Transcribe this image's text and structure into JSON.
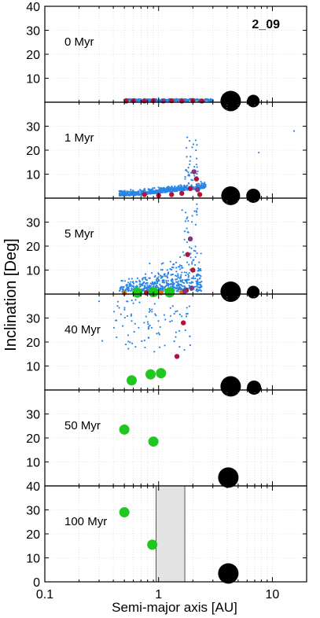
{
  "figure_label": "2_09",
  "ylabel": "Inclination [Deg]",
  "xlabel": "Semi-major axis [AU]",
  "colors": {
    "planetesimal": "#2a86e6",
    "embryo_dark": "#b3123a",
    "embryo_purple": "#7b3a7d",
    "planet_green": "#1ec81e",
    "embryo_orange": "#d9760e",
    "giant": "#000000",
    "band_fill": "#e3e3e3"
  },
  "chart_data": {
    "type": "scatter",
    "xscale": "log",
    "xlim": [
      0.1,
      20
    ],
    "ylim": [
      0,
      40
    ],
    "x_ticks": [
      {
        "v": 0.1,
        "label": "0.1"
      },
      {
        "v": 1,
        "label": "1"
      },
      {
        "v": 10,
        "label": "10"
      }
    ],
    "y_ticks": [
      0,
      10,
      20,
      30,
      40
    ],
    "grid": true,
    "panels": [
      {
        "time_label": "0 Myr",
        "y_tick_labels": [
          "10",
          "20",
          "30",
          "40"
        ],
        "planetesimal_band": {
          "x_min": 0.5,
          "x_max": 3.0,
          "y": 0.5
        },
        "embryos": [
          {
            "x": 0.52,
            "y": 0.5,
            "c": "embryo_dark"
          },
          {
            "x": 0.6,
            "y": 0.6,
            "c": "embryo_dark"
          },
          {
            "x": 0.75,
            "y": 0.5,
            "c": "embryo_dark"
          },
          {
            "x": 0.9,
            "y": 0.7,
            "c": "embryo_dark"
          },
          {
            "x": 1.1,
            "y": 0.5,
            "c": "embryo_purple"
          },
          {
            "x": 1.3,
            "y": 0.6,
            "c": "embryo_dark"
          },
          {
            "x": 1.6,
            "y": 0.5,
            "c": "embryo_dark"
          },
          {
            "x": 2.0,
            "y": 0.7,
            "c": "embryo_dark"
          },
          {
            "x": 2.4,
            "y": 0.5,
            "c": "embryo_dark"
          }
        ],
        "giants": [
          {
            "x": 4.3,
            "y": 0.5,
            "r": 13
          },
          {
            "x": 6.8,
            "y": 0.5,
            "r": 8
          }
        ]
      },
      {
        "time_label": "1 Myr",
        "y_tick_labels": [
          "10",
          "20",
          "30"
        ],
        "planetesimal_cloud": "stirred",
        "outliers": [
          {
            "x": 15.5,
            "y": 28
          },
          {
            "x": 7.6,
            "y": 19
          }
        ],
        "embryos": [
          {
            "x": 1.9,
            "y": 4,
            "c": "embryo_dark"
          },
          {
            "x": 1.6,
            "y": 2,
            "c": "embryo_dark"
          },
          {
            "x": 1.3,
            "y": 1.5,
            "c": "embryo_dark"
          },
          {
            "x": 2.2,
            "y": 3.5,
            "c": "embryo_purple"
          },
          {
            "x": 2.3,
            "y": 1.5,
            "c": "embryo_dark"
          },
          {
            "x": 1.0,
            "y": 1.2,
            "c": "embryo_dark"
          },
          {
            "x": 0.75,
            "y": 1.5,
            "c": "embryo_dark"
          },
          {
            "x": 2.05,
            "y": 11,
            "c": "embryo_purple"
          },
          {
            "x": 2.15,
            "y": 8,
            "c": "embryo_dark"
          }
        ],
        "giants": [
          {
            "x": 4.3,
            "y": 1.0,
            "r": 12
          },
          {
            "x": 6.8,
            "y": 1.0,
            "r": 9
          }
        ]
      },
      {
        "time_label": "5 Myr",
        "y_tick_labels": [
          "10",
          "20",
          "30"
        ],
        "planetesimal_cloud": "excited",
        "embryos": [
          {
            "x": 0.5,
            "y": 0.5,
            "c": "embryo_orange"
          },
          {
            "x": 0.78,
            "y": 0.5,
            "c": "embryo_dark"
          },
          {
            "x": 1.05,
            "y": 0.5,
            "c": "embryo_orange"
          },
          {
            "x": 1.8,
            "y": 16.5,
            "c": "embryo_dark"
          },
          {
            "x": 1.9,
            "y": 23,
            "c": "embryo_purple"
          },
          {
            "x": 2.0,
            "y": 10,
            "c": "embryo_dark"
          },
          {
            "x": 1.95,
            "y": 2.5,
            "c": "embryo_purple"
          },
          {
            "x": 1.75,
            "y": 1.5,
            "c": "embryo_dark"
          },
          {
            "x": 1.6,
            "y": 0.8,
            "c": "embryo_orange"
          },
          {
            "x": 1.7,
            "y": 1.2,
            "c": "embryo_purple"
          }
        ],
        "planets": [
          {
            "x": 0.65,
            "y": 0.6
          },
          {
            "x": 0.9,
            "y": 0.8
          },
          {
            "x": 1.25,
            "y": 0.7
          }
        ],
        "giants": [
          {
            "x": 4.3,
            "y": 1.0,
            "r": 13
          },
          {
            "x": 6.8,
            "y": 0.8,
            "r": 8
          }
        ]
      },
      {
        "time_label": "40 Myr",
        "y_tick_labels": [
          "10",
          "20",
          "30"
        ],
        "planetesimal_cloud": "sparse",
        "embryos": [
          {
            "x": 1.65,
            "y": 28,
            "c": "embryo_dark"
          },
          {
            "x": 1.45,
            "y": 14,
            "c": "embryo_dark"
          }
        ],
        "planets": [
          {
            "x": 0.58,
            "y": 4
          },
          {
            "x": 0.85,
            "y": 6.5
          },
          {
            "x": 1.05,
            "y": 7
          }
        ],
        "giants": [
          {
            "x": 4.3,
            "y": 1.5,
            "r": 13
          },
          {
            "x": 6.9,
            "y": 1.0,
            "r": 9
          }
        ]
      },
      {
        "time_label": "50 Myr",
        "y_tick_labels": [
          "10",
          "20",
          "30"
        ],
        "outliers": [
          {
            "x": 0.8,
            "y": 39
          }
        ],
        "planets": [
          {
            "x": 0.5,
            "y": 23.5
          },
          {
            "x": 0.9,
            "y": 18.5
          }
        ],
        "giants": [
          {
            "x": 4.1,
            "y": 3.5,
            "r": 13
          }
        ]
      },
      {
        "time_label": "100 Myr",
        "y_tick_labels": [
          "0",
          "10",
          "20",
          "30",
          "40"
        ],
        "shaded_region": {
          "x_min": 0.95,
          "x_max": 1.7
        },
        "planets": [
          {
            "x": 0.5,
            "y": 29
          },
          {
            "x": 0.88,
            "y": 15.5
          }
        ],
        "giants": [
          {
            "x": 4.1,
            "y": 3.5,
            "r": 13
          }
        ]
      }
    ]
  }
}
